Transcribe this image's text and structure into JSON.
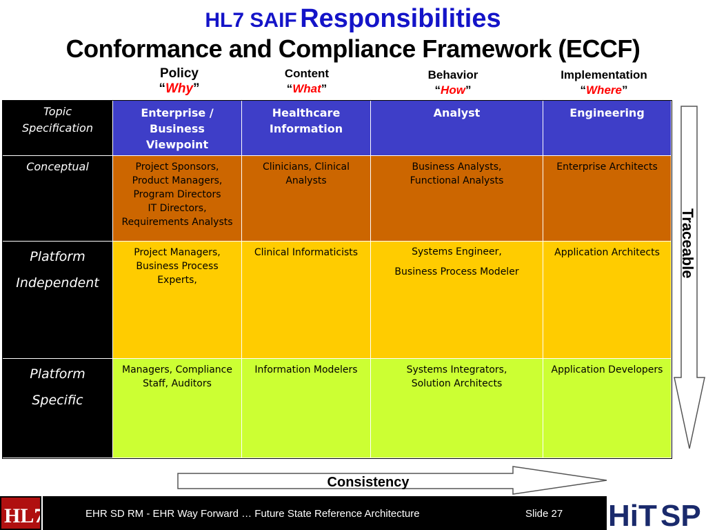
{
  "title": {
    "line1_small": "HL7 SAIF",
    "line1_big": "Responsibilities",
    "line2": "Conformance and Compliance Framework (ECCF)"
  },
  "columns": [
    {
      "label": "Policy",
      "open_quote": "“",
      "keyword": "Why",
      "close_quote": "”"
    },
    {
      "label": "Content",
      "open_quote": "“",
      "keyword": "What",
      "close_quote": "”"
    },
    {
      "label": "Behavior",
      "open_quote": "“",
      "keyword": "How",
      "close_quote": "”"
    },
    {
      "label": "Implementation",
      "open_quote": "“",
      "keyword": "Where",
      "close_quote": "”"
    }
  ],
  "table": {
    "header_row": {
      "label": [
        "Topic",
        "Specification"
      ],
      "cells": [
        [
          "Enterprise /",
          "Business",
          "Viewpoint"
        ],
        [
          "Healthcare",
          "Information"
        ],
        [
          "Analyst"
        ],
        [
          "Engineering"
        ]
      ]
    },
    "rows": [
      {
        "label": [
          "Conceptual"
        ],
        "cells": [
          [
            "Project Sponsors,",
            "Product Managers,",
            "Program Directors",
            "IT Directors,",
            "Requirements Analysts"
          ],
          [
            "Clinicians, Clinical",
            "Analysts"
          ],
          [
            "Business Analysts,",
            "Functional Analysts"
          ],
          [
            "Enterprise Architects"
          ]
        ]
      },
      {
        "label": [
          "Platform",
          "Independent"
        ],
        "cells": [
          [
            "Project Managers,",
            "Business Process",
            "Experts,"
          ],
          [
            "Clinical Informaticists"
          ],
          [
            "Systems Engineer,",
            "Business Process Modeler"
          ],
          [
            "Application Architects"
          ]
        ]
      },
      {
        "label": [
          "Platform",
          "Specific"
        ],
        "cells": [
          [
            "Managers, Compliance",
            "Staff, Auditors"
          ],
          [
            "Information Modelers"
          ],
          [
            "Systems Integrators,",
            "Solution Architects"
          ],
          [
            "Application Developers"
          ]
        ]
      }
    ]
  },
  "arrows": {
    "vertical_label": "Traceable",
    "horizontal_label": "Consistency"
  },
  "footer": {
    "text": "EHR SD RM - EHR Way Forward …  Future State Reference Architecture",
    "slide": "Slide 27",
    "logo_left": "HL7",
    "logo_right_hi": "HiT",
    "logo_right_sp": "SP"
  },
  "colors": {
    "title_blue": "#1414c8",
    "keyword_red": "#ff0000",
    "header_blue": "#3e3ec8",
    "conceptual_orange": "#cc6600",
    "independent_yellow": "#ffcc00",
    "specific_lime": "#ccff33"
  }
}
